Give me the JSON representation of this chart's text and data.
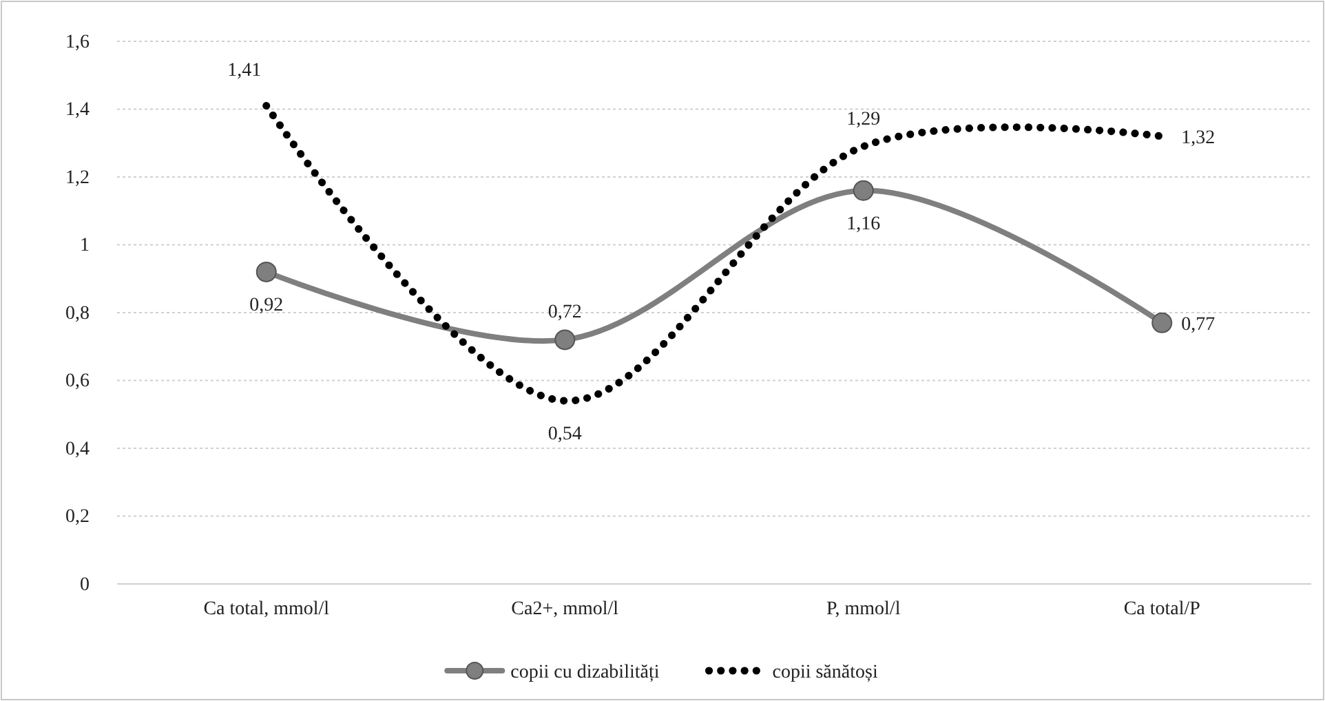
{
  "chart_data": {
    "type": "line",
    "categories": [
      "Ca total, mmol/l",
      "Ca2+, mmol/l",
      "P, mmol/l",
      "Ca total/P"
    ],
    "series": [
      {
        "name": "copii cu dizabilități",
        "color": "#7f7f7f",
        "values": [
          0.92,
          0.72,
          1.16,
          0.77
        ],
        "value_labels": [
          "0,92",
          "0,72",
          "1,16",
          "0,77"
        ],
        "marker": "circle",
        "line_style": "solid"
      },
      {
        "name": "copii sănătoși",
        "color": "#000000",
        "values": [
          1.41,
          0.54,
          1.29,
          1.32
        ],
        "value_labels": [
          "1,41",
          "0,54",
          "1,29",
          "1,32"
        ],
        "marker": "none",
        "line_style": "dotted"
      }
    ],
    "ylim": [
      0,
      1.6
    ],
    "yticks": [
      {
        "value": 0,
        "label": "0"
      },
      {
        "value": 0.2,
        "label": "0,2"
      },
      {
        "value": 0.4,
        "label": "0,4"
      },
      {
        "value": 0.6,
        "label": "0,6"
      },
      {
        "value": 0.8,
        "label": "0,8"
      },
      {
        "value": 1,
        "label": "1"
      },
      {
        "value": 1.2,
        "label": "1,2"
      },
      {
        "value": 1.4,
        "label": "1,4"
      },
      {
        "value": 1.6,
        "label": "1,6"
      }
    ],
    "grid": "y",
    "legend": "bottom"
  }
}
